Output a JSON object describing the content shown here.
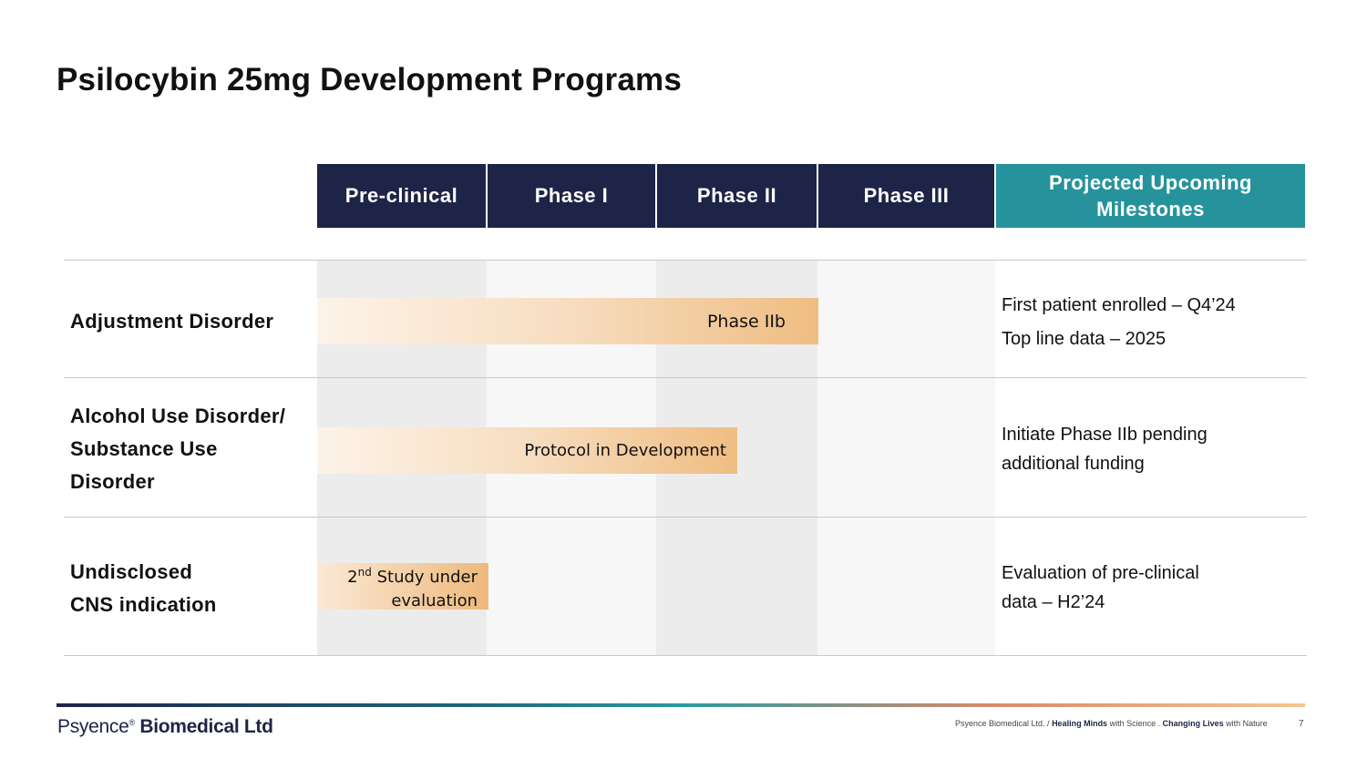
{
  "title": "Psilocybin 25mg Development Programs",
  "phases": [
    "Pre-clinical",
    "Phase I",
    "Phase II",
    "Phase III"
  ],
  "milestones_header_line1": "Projected Upcoming",
  "milestones_header_line2": "Milestones",
  "rows": [
    {
      "label_lines": [
        "Adjustment Disorder"
      ],
      "bar_label": "Phase IIb",
      "milestones": [
        "First patient enrolled – Q4’24",
        "Top line data – 2025"
      ]
    },
    {
      "label_lines": [
        "Alcohol Use Disorder/",
        "Substance Use",
        "Disorder"
      ],
      "bar_label": "Protocol in Development",
      "milestones": [
        "Initiate Phase IIb pending",
        "additional funding"
      ]
    },
    {
      "label_lines": [
        "Undisclosed",
        "CNS indication"
      ],
      "bar_label_prefix": "2",
      "bar_label_sup": "nd",
      "bar_label_line1_rest": " Study under",
      "bar_label_line2": "evaluation",
      "milestones": [
        "Evaluation of pre-clinical",
        "data – H2’24"
      ]
    }
  ],
  "footer": {
    "logo_light": "Psyence",
    "logo_reg": "®",
    "logo_bold": " Biomedical Ltd",
    "tagline_company": "Psyence Biomedical Ltd. / ",
    "tagline_b1": "Healing Minds",
    "tagline_t1": " with Science . ",
    "tagline_b2": "Changing Lives",
    "tagline_t2": " with Nature",
    "page_number": "7"
  },
  "colors": {
    "header_dark": "#1e2447",
    "header_teal": "#26939c",
    "bar_orange": "#efbd82"
  }
}
